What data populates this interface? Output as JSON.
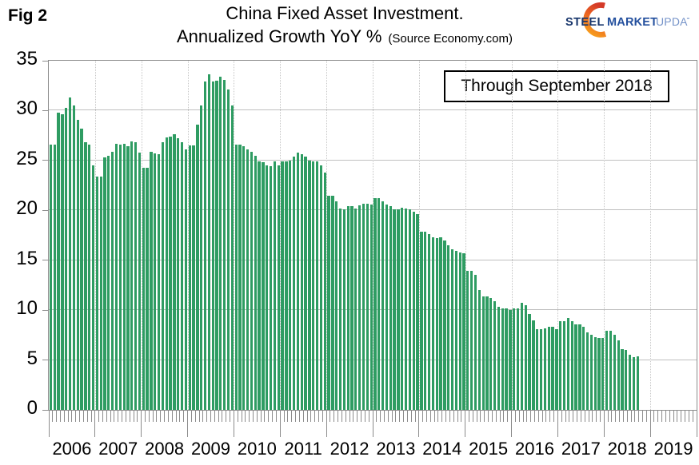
{
  "figure": {
    "label": "Fig 2"
  },
  "header": {
    "title_line1": "China Fixed Asset Investment.",
    "title_line2": "Annualized Growth YoY %",
    "source": "(Source Economy.com)"
  },
  "logo": {
    "word1": "STEEL",
    "word2": "MARKET",
    "word3": "UPDATE",
    "word1_color": "#17356b",
    "word2_color": "#24509e",
    "word3_color": "#7492c8",
    "swoosh_color_top": "#d43a28",
    "swoosh_color_bottom": "#f7a01e"
  },
  "annotation": {
    "text": "Through September 2018"
  },
  "chart_data": {
    "type": "bar",
    "title": "China Fixed Asset Investment. Annualized Growth YoY %",
    "source_text": "(Source Economy.com)",
    "annotation": "Through September 2018",
    "xlabel": "",
    "ylabel": "",
    "ylim": [
      0,
      35
    ],
    "yticks": [
      0,
      5,
      10,
      15,
      20,
      25,
      30,
      35
    ],
    "grid": true,
    "bar_color": "#2e9c62",
    "years": [
      "2006",
      "2007",
      "2008",
      "2009",
      "2010",
      "2011",
      "2012",
      "2013",
      "2014",
      "2015",
      "2016",
      "2017",
      "2018",
      "2019"
    ],
    "months_per_year": 12,
    "first_bar_month": "2006-01",
    "last_bar_month": "2018-09",
    "values": [
      26.6,
      26.6,
      29.8,
      29.6,
      30.3,
      31.3,
      30.5,
      29.1,
      28.2,
      26.8,
      26.6,
      24.5,
      23.4,
      23.4,
      25.3,
      25.5,
      25.9,
      26.7,
      26.6,
      26.7,
      26.4,
      26.9,
      26.8,
      25.8,
      24.3,
      24.3,
      25.9,
      25.7,
      25.6,
      26.8,
      27.3,
      27.4,
      27.6,
      27.2,
      26.8,
      26.1,
      26.5,
      26.5,
      28.6,
      30.5,
      32.9,
      33.6,
      32.9,
      33.0,
      33.4,
      33.1,
      32.1,
      30.5,
      26.6,
      26.6,
      26.4,
      26.1,
      25.9,
      25.5,
      24.9,
      24.8,
      24.5,
      24.4,
      24.9,
      24.5,
      24.9,
      24.9,
      25.0,
      25.4,
      25.8,
      25.6,
      25.4,
      25.0,
      24.9,
      24.9,
      24.5,
      23.8,
      21.5,
      21.5,
      20.9,
      20.2,
      20.1,
      20.4,
      20.4,
      20.2,
      20.5,
      20.7,
      20.7,
      20.6,
      21.2,
      21.2,
      20.9,
      20.6,
      20.4,
      20.1,
      20.1,
      20.3,
      20.2,
      20.1,
      19.9,
      19.6,
      17.9,
      17.9,
      17.6,
      17.3,
      17.2,
      17.3,
      17.0,
      16.5,
      16.1,
      15.9,
      15.8,
      15.7,
      13.9,
      13.9,
      13.5,
      12.0,
      11.4,
      11.4,
      11.2,
      10.9,
      10.3,
      10.2,
      10.2,
      10.0,
      10.2,
      10.2,
      10.7,
      10.5,
      9.6,
      9.0,
      8.1,
      8.1,
      8.2,
      8.3,
      8.3,
      8.1,
      8.9,
      8.9,
      9.2,
      8.9,
      8.6,
      8.6,
      8.3,
      7.8,
      7.5,
      7.3,
      7.2,
      7.2,
      7.9,
      7.9,
      7.5,
      7.0,
      6.1,
      6.0,
      5.5,
      5.3,
      5.4
    ]
  }
}
